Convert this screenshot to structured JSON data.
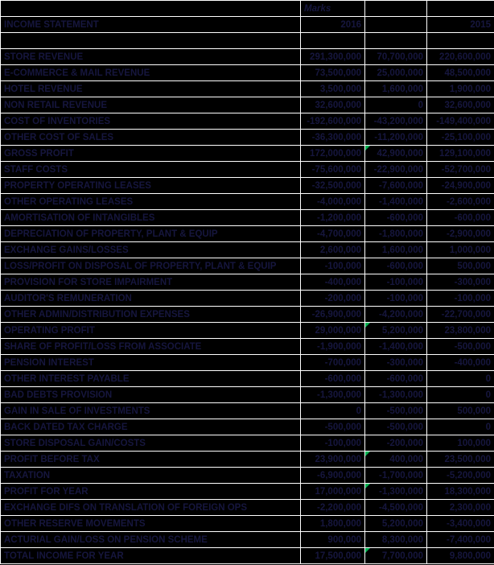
{
  "colors": {
    "background": "#000000",
    "gridline": "#ffffff",
    "dark_text": "#16163e",
    "positive_value": "#2130ff",
    "negative_value": "#ff1414",
    "flag_green": "#00b050"
  },
  "header": {
    "unit_label": "Marks",
    "statement_title": "INCOME STATEMENT",
    "year_left": "2016",
    "year_right": "2015"
  },
  "rows": [
    {
      "label": "STORE REVENUE",
      "y2016": "291,300,000",
      "diff": "70,700,000",
      "diff_tone": "pos",
      "y2015": "220,600,000",
      "flag": false
    },
    {
      "label": "E-COMMERCE & MAIL REVENUE",
      "y2016": "73,500,000",
      "diff": "25,000,000",
      "diff_tone": "pos",
      "y2015": "48,500,000",
      "flag": false
    },
    {
      "label": "HOTEL REVENUE",
      "y2016": "3,500,000",
      "diff": "1,600,000",
      "diff_tone": "pos",
      "y2015": "1,900,000",
      "flag": false
    },
    {
      "label": "NON RETAIL REVENUE",
      "y2016": "32,600,000",
      "diff": "0",
      "diff_tone": "mut",
      "y2015": "32,600,000",
      "flag": false
    },
    {
      "label": "COST OF INVENTORIES",
      "y2016": "-192,600,000",
      "diff": "-43,200,000",
      "diff_tone": "neg",
      "y2015": "-149,400,000",
      "flag": false
    },
    {
      "label": "OTHER COST OF SALES",
      "y2016": "-36,300,000",
      "diff": "-11,200,000",
      "diff_tone": "neg",
      "y2015": "-25,100,000",
      "flag": false
    },
    {
      "label": "GROSS PROFIT",
      "y2016": "172,000,000",
      "diff": "42,900,000",
      "diff_tone": "pos",
      "y2015": "129,100,000",
      "flag": true
    },
    {
      "label": "STAFF COSTS",
      "y2016": "-75,600,000",
      "diff": "-22,900,000",
      "diff_tone": "neg",
      "y2015": "-52,700,000",
      "flag": false
    },
    {
      "label": "PROPERTY OPERATING LEASES",
      "y2016": "-32,500,000",
      "diff": "-7,600,000",
      "diff_tone": "neg",
      "y2015": "-24,900,000",
      "flag": false
    },
    {
      "label": "OTHER OPERATING LEASES",
      "y2016": "-4,000,000",
      "diff": "-1,400,000",
      "diff_tone": "neg",
      "y2015": "-2,600,000",
      "flag": false
    },
    {
      "label": "AMORTISATION OF INTANGIBLES",
      "y2016": "-1,200,000",
      "diff": "-600,000",
      "diff_tone": "neg",
      "y2015": "-600,000",
      "flag": false
    },
    {
      "label": "DEPRECIATION OF PROPERTY, PLANT & EQUIP",
      "y2016": "-4,700,000",
      "diff": "-1,800,000",
      "diff_tone": "neg",
      "y2015": "-2,900,000",
      "flag": false
    },
    {
      "label": "EXCHANGE GAINS/LOSSES",
      "y2016": "2,600,000",
      "diff": "1,600,000",
      "diff_tone": "pos",
      "y2015": "1,000,000",
      "flag": false
    },
    {
      "label": "LOSS/PROFIT ON DISPOSAL OF PROPERTY, PLANT & EQUIP",
      "y2016": "-100,000",
      "diff": "-600,000",
      "diff_tone": "neg",
      "y2015": "500,000",
      "flag": false
    },
    {
      "label": "PROVISION FOR STORE IMPAIRMENT",
      "y2016": "-400,000",
      "diff": "-100,000",
      "diff_tone": "neg",
      "y2015": "-300,000",
      "flag": false
    },
    {
      "label": "AUDITOR'S REMUNERATION",
      "y2016": "-200,000",
      "diff": "-100,000",
      "diff_tone": "neg",
      "y2015": "-100,000",
      "flag": false
    },
    {
      "label": "OTHER ADMIN/DISTRIBUTION EXPENSES",
      "y2016": "-26,900,000",
      "diff": "-4,200,000",
      "diff_tone": "neg",
      "y2015": "-22,700,000",
      "flag": false
    },
    {
      "label": "OPERATING PROFIT",
      "y2016": "29,000,000",
      "diff": "5,200,000",
      "diff_tone": "pos",
      "y2015": "23,800,000",
      "flag": true
    },
    {
      "label": "SHARE OF PROFIT/LOSS FROM ASSOCIATE",
      "y2016": "-1,900,000",
      "diff": "-1,400,000",
      "diff_tone": "neg",
      "y2015": "-500,000",
      "flag": false
    },
    {
      "label": "PENSION INTEREST",
      "y2016": "-700,000",
      "diff": "-300,000",
      "diff_tone": "neg",
      "y2015": "-400,000",
      "flag": false
    },
    {
      "label": "OTHER INTEREST PAYABLE",
      "y2016": "-600,000",
      "diff": "-600,000",
      "diff_tone": "neg",
      "y2015": "0",
      "flag": false
    },
    {
      "label": "BAD DEBTS PROVISION",
      "y2016": "-1,300,000",
      "diff": "-1,300,000",
      "diff_tone": "neg",
      "y2015": "0",
      "flag": false
    },
    {
      "label": "GAIN IN SALE OF INVESTMENTS",
      "y2016": "0",
      "diff": "-500,000",
      "diff_tone": "neg",
      "y2015": "500,000",
      "flag": false
    },
    {
      "label": "BACK DATED TAX CHARGE",
      "y2016": "-500,000",
      "diff": "-500,000",
      "diff_tone": "neg",
      "y2015": "0",
      "flag": false
    },
    {
      "label": "STORE DISPOSAL GAIN/COSTS",
      "y2016": "-100,000",
      "diff": "-200,000",
      "diff_tone": "neg",
      "y2015": "100,000",
      "flag": false
    },
    {
      "label": "PROFIT BEFORE TAX",
      "y2016": "23,900,000",
      "diff": "400,000",
      "diff_tone": "pos",
      "y2015": "23,500,000",
      "flag": true
    },
    {
      "label": "TAXATION",
      "y2016": "-6,900,000",
      "diff": "-1,700,000",
      "diff_tone": "neg",
      "y2015": "-5,200,000",
      "flag": false
    },
    {
      "label": "PROFIT FOR YEAR",
      "y2016": "17,000,000",
      "diff": "-1,300,000",
      "diff_tone": "neg",
      "y2015": "18,300,000",
      "flag": true
    },
    {
      "label": "EXCHANGE DIFS ON TRANSLATION OF FOREIGN OPS",
      "y2016": "-2,200,000",
      "diff": "-4,500,000",
      "diff_tone": "neg",
      "y2015": "2,300,000",
      "flag": false
    },
    {
      "label": "OTHER RESERVE MOVEMENTS",
      "y2016": "1,800,000",
      "diff": "5,200,000",
      "diff_tone": "pos",
      "y2015": "-3,400,000",
      "flag": false
    },
    {
      "label": "ACTURIAL GAIN/LOSS ON PENSION SCHEME",
      "y2016": "900,000",
      "diff": "8,300,000",
      "diff_tone": "pos",
      "y2015": "-7,400,000",
      "flag": false
    },
    {
      "label": "TOTAL INCOME FOR YEAR",
      "y2016": "17,500,000",
      "diff": "7,700,000",
      "diff_tone": "pos",
      "y2015": "9,800,000",
      "flag": true
    }
  ]
}
